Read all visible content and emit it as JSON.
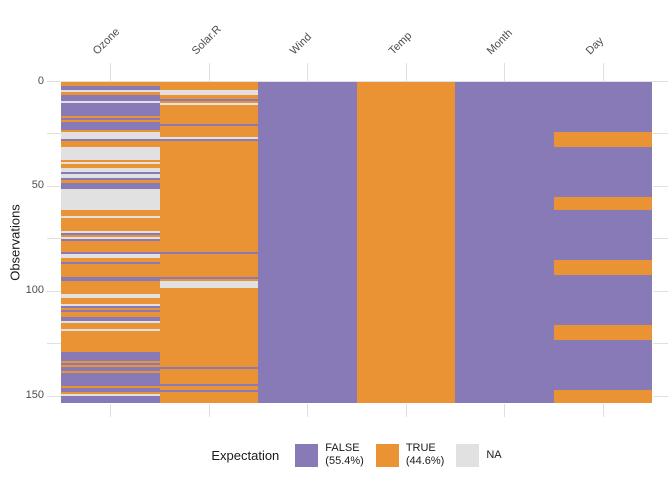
{
  "chart_data": {
    "type": "heatmap",
    "title": "",
    "ylabel": "Observations",
    "xlabel": "",
    "x_labels": [
      "Ozone",
      "Solar.R",
      "Wind",
      "Temp",
      "Month",
      "Day"
    ],
    "y_axis": {
      "n_rows": 153,
      "label_ticks": [
        0,
        50,
        100,
        150
      ],
      "all_ticks": [
        0,
        25,
        50,
        75,
        100,
        125,
        150
      ]
    },
    "legend": {
      "title": "Expectation",
      "position": "bottom",
      "entries": [
        {
          "label": "FALSE",
          "sublabel": "(55.4%)",
          "value": "FALSE"
        },
        {
          "label": "TRUE",
          "sublabel": "(44.6%)",
          "value": "TRUE"
        },
        {
          "label": "NA",
          "sublabel": "",
          "value": "NA"
        }
      ]
    },
    "colors": {
      "TRUE": "#EA9334",
      "FALSE": "#877AB7",
      "NA": "#E1E1E1",
      "gridline": "#e0e0e0",
      "axis_text": "#4d4d4d",
      "title_text": "#1a1a1a",
      "background": "#ffffff"
    },
    "value_map": {
      "T": "TRUE",
      "F": "FALSE",
      "N": "NA"
    },
    "columns": [
      {
        "name": "Ozone",
        "runs": [
          [
            "T",
            2
          ],
          [
            "F",
            2
          ],
          [
            "N",
            1
          ],
          [
            "T",
            1
          ],
          [
            "F",
            3
          ],
          [
            "N",
            1
          ],
          [
            "F",
            6
          ],
          [
            "T",
            1
          ],
          [
            "F",
            1
          ],
          [
            "T",
            1
          ],
          [
            "F",
            4
          ],
          [
            "T",
            1
          ],
          [
            "N",
            3
          ],
          [
            "F",
            1
          ],
          [
            "T",
            3
          ],
          [
            "N",
            6
          ],
          [
            "T",
            1
          ],
          [
            "N",
            1
          ],
          [
            "T",
            2
          ],
          [
            "N",
            2
          ],
          [
            "F",
            1
          ],
          [
            "N",
            2
          ],
          [
            "F",
            1
          ],
          [
            "T",
            1
          ],
          [
            "F",
            3
          ],
          [
            "N",
            10
          ],
          [
            "T",
            3
          ],
          [
            "N",
            1
          ],
          [
            "T",
            6
          ],
          [
            "N",
            1
          ],
          [
            "F",
            1
          ],
          [
            "T",
            1
          ],
          [
            "N",
            1
          ],
          [
            "F",
            1
          ],
          [
            "T",
            5
          ],
          [
            "F",
            1
          ],
          [
            "N",
            2
          ],
          [
            "T",
            2
          ],
          [
            "F",
            1
          ],
          [
            "T",
            6
          ],
          [
            "F",
            2
          ],
          [
            "T",
            6
          ],
          [
            "N",
            2
          ],
          [
            "T",
            3
          ],
          [
            "N",
            1
          ],
          [
            "F",
            1
          ],
          [
            "T",
            1
          ],
          [
            "F",
            1
          ],
          [
            "T",
            2
          ],
          [
            "F",
            2
          ],
          [
            "N",
            1
          ],
          [
            "T",
            3
          ],
          [
            "N",
            1
          ],
          [
            "T",
            10
          ],
          [
            "F",
            4
          ],
          [
            "T",
            1
          ],
          [
            "F",
            1
          ],
          [
            "T",
            1
          ],
          [
            "F",
            2
          ],
          [
            "T",
            1
          ],
          [
            "F",
            6
          ],
          [
            "T",
            1
          ],
          [
            "F",
            2
          ],
          [
            "T",
            1
          ],
          [
            "N",
            1
          ],
          [
            "F",
            3
          ]
        ]
      },
      {
        "name": "Solar.R",
        "runs": [
          [
            "T",
            4
          ],
          [
            "N",
            2
          ],
          [
            "T",
            2
          ],
          [
            "F",
            1
          ],
          [
            "T",
            1
          ],
          [
            "N",
            1
          ],
          [
            "T",
            9
          ],
          [
            "F",
            1
          ],
          [
            "T",
            5
          ],
          [
            "N",
            1
          ],
          [
            "F",
            1
          ],
          [
            "T",
            53
          ],
          [
            "F",
            1
          ],
          [
            "T",
            11
          ],
          [
            "F",
            1
          ],
          [
            "T",
            1
          ],
          [
            "N",
            3
          ],
          [
            "T",
            38
          ],
          [
            "F",
            1
          ],
          [
            "T",
            7
          ],
          [
            "F",
            1
          ],
          [
            "T",
            2
          ],
          [
            "F",
            1
          ],
          [
            "T",
            5
          ]
        ]
      },
      {
        "name": "Wind",
        "runs": [
          [
            "F",
            153
          ]
        ]
      },
      {
        "name": "Temp",
        "runs": [
          [
            "T",
            153
          ]
        ]
      },
      {
        "name": "Month",
        "runs": [
          [
            "F",
            153
          ]
        ]
      },
      {
        "name": "Day",
        "runs": [
          [
            "F",
            24
          ],
          [
            "T",
            7
          ],
          [
            "F",
            24
          ],
          [
            "T",
            6
          ],
          [
            "F",
            24
          ],
          [
            "T",
            7
          ],
          [
            "F",
            24
          ],
          [
            "T",
            7
          ],
          [
            "F",
            24
          ],
          [
            "T",
            6
          ]
        ]
      }
    ]
  }
}
